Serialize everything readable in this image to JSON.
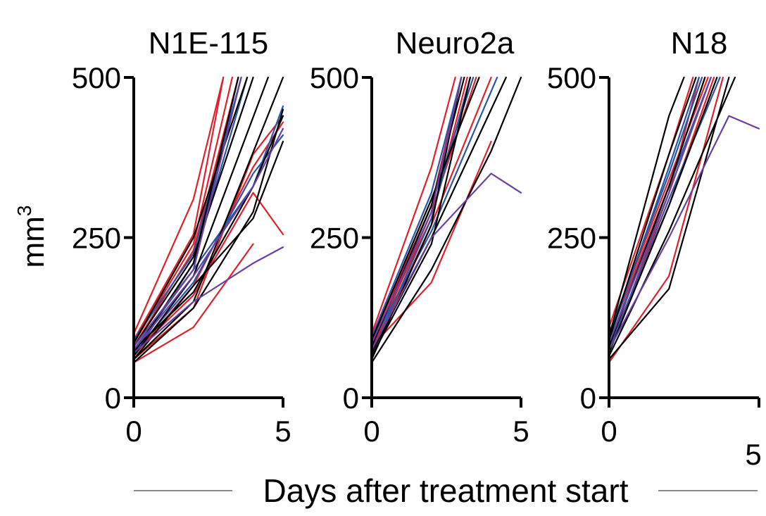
{
  "chart_data": {
    "type": "line",
    "ylabel": "mm",
    "ylabel_sup": "3",
    "xlabel": "Days after treatment start",
    "colors": {
      "red": "#e0202a",
      "blue": "#2a56a6",
      "black": "#000000",
      "purple": "#6a3fa0"
    },
    "panels": [
      {
        "title": "N1E-115",
        "x_ticks": [
          "0",
          "5"
        ],
        "y_ticks": [
          "0",
          "250",
          "500"
        ],
        "xlim": [
          0,
          5
        ],
        "ylim": [
          0,
          500
        ],
        "series": [
          {
            "color": "red",
            "x": [
              0,
              2,
              3
            ],
            "y": [
              100,
              310,
              500
            ]
          },
          {
            "color": "red",
            "x": [
              0,
              2,
              3
            ],
            "y": [
              90,
              255,
              500
            ]
          },
          {
            "color": "red",
            "x": [
              0,
              2,
              4
            ],
            "y": [
              55,
              110,
              240
            ]
          },
          {
            "color": "red",
            "x": [
              0,
              2,
              4,
              5
            ],
            "y": [
              60,
              140,
              380,
              440
            ]
          },
          {
            "color": "red",
            "x": [
              0,
              2,
              4,
              5
            ],
            "y": [
              70,
              160,
              320,
              255
            ]
          },
          {
            "color": "red",
            "x": [
              0,
              2,
              3.5
            ],
            "y": [
              80,
              230,
              500
            ]
          },
          {
            "color": "red",
            "x": [
              0,
              2,
              4,
              5
            ],
            "y": [
              65,
              175,
              360,
              430
            ]
          },
          {
            "color": "red",
            "x": [
              0,
              2,
              3.3
            ],
            "y": [
              85,
              240,
              500
            ]
          },
          {
            "color": "blue",
            "x": [
              0,
              2,
              4,
              5
            ],
            "y": [
              80,
              200,
              330,
              455
            ]
          },
          {
            "color": "blue",
            "x": [
              0,
              2,
              3.5
            ],
            "y": [
              75,
              200,
              500
            ]
          },
          {
            "color": "blue",
            "x": [
              0,
              2,
              4,
              5
            ],
            "y": [
              70,
              180,
              350,
              410
            ]
          },
          {
            "color": "blue",
            "x": [
              0,
              2,
              3.8
            ],
            "y": [
              65,
              210,
              500
            ]
          },
          {
            "color": "blue",
            "x": [
              0,
              2,
              3.6
            ],
            "y": [
              90,
              225,
              500
            ]
          },
          {
            "color": "black",
            "x": [
              0,
              2,
              3.8
            ],
            "y": [
              85,
              250,
              500
            ]
          },
          {
            "color": "black",
            "x": [
              0,
              2,
              4,
              5
            ],
            "y": [
              75,
              165,
              330,
              440
            ]
          },
          {
            "color": "black",
            "x": [
              0,
              2,
              4,
              5
            ],
            "y": [
              60,
              175,
              280,
              400
            ]
          },
          {
            "color": "black",
            "x": [
              0,
              2,
              4
            ],
            "y": [
              80,
              220,
              500
            ]
          },
          {
            "color": "black",
            "x": [
              0,
              2,
              3.5
            ],
            "y": [
              70,
              210,
              500
            ]
          },
          {
            "color": "black",
            "x": [
              0,
              2,
              4.5
            ],
            "y": [
              65,
              190,
              500
            ]
          },
          {
            "color": "black",
            "x": [
              0,
              2,
              5
            ],
            "y": [
              60,
              150,
              500
            ]
          },
          {
            "color": "black",
            "x": [
              0,
              2,
              4,
              5
            ],
            "y": [
              55,
              140,
              290,
              450
            ]
          },
          {
            "color": "purple",
            "x": [
              0,
              2,
              4,
              5
            ],
            "y": [
              70,
              150,
              210,
              235
            ]
          },
          {
            "color": "purple",
            "x": [
              0,
              2,
              3.6
            ],
            "y": [
              80,
              200,
              500
            ]
          },
          {
            "color": "purple",
            "x": [
              0,
              2,
              4,
              5
            ],
            "y": [
              75,
              190,
              330,
              420
            ]
          }
        ]
      },
      {
        "title": "Neuro2a",
        "x_ticks": [
          "0",
          "5"
        ],
        "y_ticks": [
          "0",
          "250",
          "500"
        ],
        "xlim": [
          0,
          5
        ],
        "ylim": [
          0,
          500
        ],
        "series": [
          {
            "color": "red",
            "x": [
              0,
              2,
              2.8
            ],
            "y": [
              100,
              360,
              500
            ]
          },
          {
            "color": "red",
            "x": [
              0,
              2,
              4
            ],
            "y": [
              80,
              180,
              400
            ]
          },
          {
            "color": "red",
            "x": [
              0,
              2,
              3
            ],
            "y": [
              90,
              300,
              500
            ]
          },
          {
            "color": "red",
            "x": [
              0,
              2,
              3.2
            ],
            "y": [
              85,
              280,
              500
            ]
          },
          {
            "color": "red",
            "x": [
              0,
              2,
              4
            ],
            "y": [
              70,
              270,
              500
            ]
          },
          {
            "color": "red",
            "x": [
              0,
              2,
              3.5
            ],
            "y": [
              75,
              290,
              500
            ]
          },
          {
            "color": "blue",
            "x": [
              0,
              2,
              3
            ],
            "y": [
              95,
              320,
              500
            ]
          },
          {
            "color": "blue",
            "x": [
              0,
              2,
              3.4
            ],
            "y": [
              80,
              300,
              500
            ]
          },
          {
            "color": "blue",
            "x": [
              0,
              2,
              4.2
            ],
            "y": [
              85,
              260,
              500
            ]
          },
          {
            "color": "blue",
            "x": [
              0,
              2,
              3.3
            ],
            "y": [
              70,
              280,
              500
            ]
          },
          {
            "color": "black",
            "x": [
              0,
              2,
              3
            ],
            "y": [
              60,
              270,
              500
            ]
          },
          {
            "color": "black",
            "x": [
              0,
              2,
              4,
              5
            ],
            "y": [
              55,
              200,
              385,
              500
            ]
          },
          {
            "color": "black",
            "x": [
              0,
              2,
              3.6
            ],
            "y": [
              90,
              310,
              500
            ]
          },
          {
            "color": "black",
            "x": [
              0,
              2,
              3.1
            ],
            "y": [
              80,
              300,
              500
            ]
          },
          {
            "color": "black",
            "x": [
              0,
              2,
              4.5
            ],
            "y": [
              70,
              250,
              500
            ]
          },
          {
            "color": "black",
            "x": [
              0,
              2,
              3.3
            ],
            "y": [
              65,
              240,
              500
            ]
          },
          {
            "color": "purple",
            "x": [
              0,
              2,
              4,
              5
            ],
            "y": [
              75,
              250,
              350,
              320
            ]
          },
          {
            "color": "purple",
            "x": [
              0,
              2,
              3
            ],
            "y": [
              85,
              290,
              500
            ]
          }
        ]
      },
      {
        "title": "N18",
        "x_ticks": [
          "0",
          "5"
        ],
        "y_ticks": [
          "0",
          "250",
          "500"
        ],
        "xlim": [
          0,
          5
        ],
        "ylim": [
          0,
          500
        ],
        "series": [
          {
            "color": "red",
            "x": [
              0,
              2,
              2.8
            ],
            "y": [
              110,
              380,
              500
            ]
          },
          {
            "color": "red",
            "x": [
              0,
              2,
              3.2
            ],
            "y": [
              95,
              330,
              500
            ]
          },
          {
            "color": "red",
            "x": [
              0,
              2,
              3.5
            ],
            "y": [
              80,
              300,
              500
            ]
          },
          {
            "color": "red",
            "x": [
              0,
              2,
              3
            ],
            "y": [
              70,
              320,
              500
            ]
          },
          {
            "color": "red",
            "x": [
              0,
              2,
              3.8
            ],
            "y": [
              55,
              190,
              500
            ]
          },
          {
            "color": "red",
            "x": [
              0,
              2,
              3.3
            ],
            "y": [
              100,
              340,
              500
            ]
          },
          {
            "color": "blue",
            "x": [
              0,
              2,
              3
            ],
            "y": [
              90,
              360,
              500
            ]
          },
          {
            "color": "blue",
            "x": [
              0,
              2,
              3.4
            ],
            "y": [
              85,
              330,
              500
            ]
          },
          {
            "color": "blue",
            "x": [
              0,
              2,
              3.7
            ],
            "y": [
              75,
              310,
              500
            ]
          },
          {
            "color": "blue",
            "x": [
              0,
              2,
              3.1
            ],
            "y": [
              100,
              350,
              500
            ]
          },
          {
            "color": "black",
            "x": [
              0,
              2,
              2.5
            ],
            "y": [
              95,
              440,
              500
            ]
          },
          {
            "color": "black",
            "x": [
              0,
              2,
              4
            ],
            "y": [
              60,
              170,
              500
            ]
          },
          {
            "color": "black",
            "x": [
              0,
              2,
              3.2
            ],
            "y": [
              80,
              330,
              500
            ]
          },
          {
            "color": "black",
            "x": [
              0,
              2,
              3.6
            ],
            "y": [
              70,
              300,
              500
            ]
          },
          {
            "color": "black",
            "x": [
              0,
              2,
              4.2
            ],
            "y": [
              65,
              260,
              500
            ]
          },
          {
            "color": "black",
            "x": [
              0,
              2,
              2.9
            ],
            "y": [
              90,
              380,
              500
            ]
          },
          {
            "color": "purple",
            "x": [
              0,
              2,
              4,
              5
            ],
            "y": [
              75,
              250,
              440,
              420
            ]
          },
          {
            "color": "purple",
            "x": [
              0,
              2,
              3.4
            ],
            "y": [
              85,
              320,
              500
            ]
          }
        ]
      }
    ]
  }
}
